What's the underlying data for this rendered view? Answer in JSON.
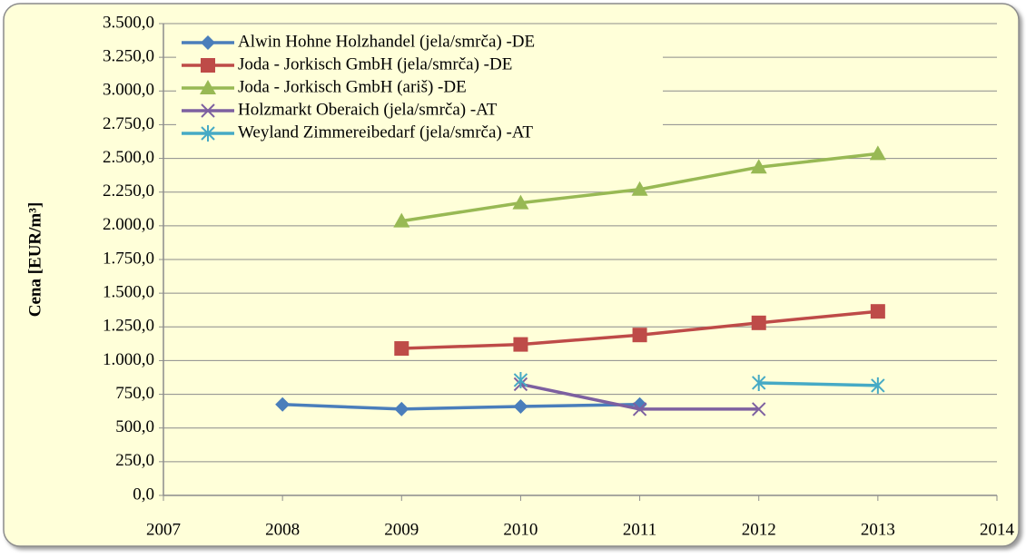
{
  "chart_data": {
    "type": "line",
    "y_label": "Cena [EUR/m³]",
    "x": [
      2008,
      2009,
      2010,
      2011,
      2012,
      2013
    ],
    "xlim": [
      2007,
      2014
    ],
    "xticks": [
      2007,
      2008,
      2009,
      2010,
      2011,
      2012,
      2013,
      2014
    ],
    "ylim": [
      0,
      3500
    ],
    "yticks": [
      {
        "value": 0,
        "label": "0,0"
      },
      {
        "value": 250,
        "label": "250,0"
      },
      {
        "value": 500,
        "label": "500,0"
      },
      {
        "value": 750,
        "label": "750,0"
      },
      {
        "value": 1000,
        "label": "1.000,0"
      },
      {
        "value": 1250,
        "label": "1.250,0"
      },
      {
        "value": 1500,
        "label": "1.500,0"
      },
      {
        "value": 1750,
        "label": "1.750,0"
      },
      {
        "value": 2000,
        "label": "2.000,0"
      },
      {
        "value": 2250,
        "label": "2.250,0"
      },
      {
        "value": 2500,
        "label": "2.500,0"
      },
      {
        "value": 2750,
        "label": "2.750,0"
      },
      {
        "value": 3000,
        "label": "3.000,0"
      },
      {
        "value": 3250,
        "label": "3.250,0"
      },
      {
        "value": 3500,
        "label": "3.500,0"
      }
    ],
    "grid": true,
    "legend": "top-left",
    "series": [
      {
        "name": "Alwin Hohne Holzhandel (jela/smrča) -DE",
        "color": "#4a7ebb",
        "marker": "diamond",
        "values": [
          675,
          640,
          660,
          675,
          null,
          null
        ]
      },
      {
        "name": "Joda - Jorkisch GmbH (jela/smrča) -DE",
        "color": "#be4b48",
        "marker": "square",
        "values": [
          null,
          1090,
          1120,
          1190,
          1280,
          1365
        ]
      },
      {
        "name": "Joda - Jorkisch GmbH (ariš) -DE",
        "color": "#98b954",
        "marker": "triangle",
        "values": [
          null,
          2035,
          2170,
          2270,
          2435,
          2535
        ]
      },
      {
        "name": "Holzmarkt Oberaich (jela/smrča) -AT",
        "color": "#7d60a0",
        "marker": "x",
        "values": [
          null,
          null,
          825,
          640,
          640,
          null
        ]
      },
      {
        "name": "Weyland Zimmereibedarf (jela/smrča) -AT",
        "color": "#46aac5",
        "marker": "star",
        "values": [
          null,
          null,
          855,
          null,
          835,
          815
        ]
      }
    ]
  }
}
